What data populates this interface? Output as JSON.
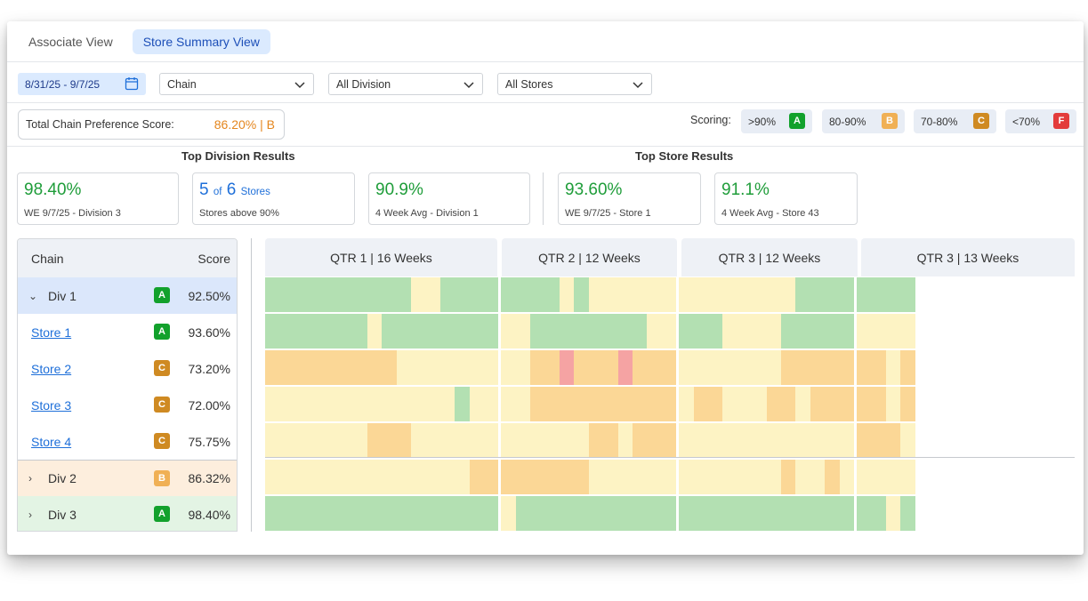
{
  "tabs": [
    {
      "label": "Associate View",
      "active": false
    },
    {
      "label": "Store Summary View",
      "active": true
    }
  ],
  "filters": {
    "date_range": "8/31/25 - 9/7/25",
    "chain": "Chain",
    "division": "All Division",
    "stores": "All Stores"
  },
  "total": {
    "label": "Total  Chain Preference Score:",
    "value": "86.20% | B"
  },
  "scoring": {
    "label": "Scoring:",
    "items": [
      {
        "range": ">90%",
        "grade": "A"
      },
      {
        "range": "80-90%",
        "grade": "B"
      },
      {
        "range": "70-80%",
        "grade": "C"
      },
      {
        "range": "<70%",
        "grade": "F"
      }
    ]
  },
  "colors": {
    "grade_A": "#12a12c",
    "grade_B": "#f0b055",
    "grade_C": "#cf8a22",
    "grade_F": "#e33b3b",
    "heat_green": "#b3e0b2",
    "heat_yellow": "#fdf3c4",
    "heat_orange": "#fbd796",
    "heat_red": "#f5a3a3"
  },
  "division_results": {
    "title": "Top Division Results",
    "cards": [
      {
        "big": "98.40%",
        "small": "WE 9/7/25 - Division 3"
      },
      {
        "count": "5",
        "of": "of",
        "total": "6",
        "unit": "Stores",
        "small": "Stores above 90%"
      },
      {
        "big": "90.9%",
        "small": "4 Week Avg - Division 1"
      }
    ]
  },
  "store_results": {
    "title": "Top Store Results",
    "cards": [
      {
        "big": "93.60%",
        "small": "WE 9/7/25 - Store 1"
      },
      {
        "big": "91.1%",
        "small": "4 Week Avg - Store 43"
      }
    ]
  },
  "table": {
    "col_chain": "Chain",
    "col_score": "Score",
    "rows": [
      {
        "name": "Div 1",
        "grade": "A",
        "score": "92.50%",
        "type": "division",
        "expanded": true
      },
      {
        "name": "Store 1",
        "grade": "A",
        "score": "93.60%",
        "type": "store"
      },
      {
        "name": "Store 2",
        "grade": "C",
        "score": "73.20%",
        "type": "store"
      },
      {
        "name": "Store 3",
        "grade": "C",
        "score": "72.00%",
        "type": "store"
      },
      {
        "name": "Store 4",
        "grade": "C",
        "score": "75.75%",
        "type": "store"
      },
      {
        "name": "Div 2",
        "grade": "B",
        "score": "86.32%",
        "type": "division",
        "expanded": false
      },
      {
        "name": "Div 3",
        "grade": "A",
        "score": "98.40%",
        "type": "division",
        "expanded": false
      }
    ]
  },
  "quarters": [
    {
      "label": "QTR 1 | 16 Weeks",
      "weeks": 16
    },
    {
      "label": "QTR 2 | 12 Weeks",
      "weeks": 12
    },
    {
      "label": "QTR 3 | 12 Weeks",
      "weeks": 12
    },
    {
      "label": "QTR 3 | 13 Weeks",
      "weeks": 13
    }
  ],
  "heatmap": [
    [
      [
        "g",
        10
      ],
      [
        "y",
        2
      ],
      [
        "g",
        4
      ],
      [
        "g",
        4
      ],
      [
        "y",
        1
      ],
      [
        "g",
        1
      ],
      [
        "y",
        6
      ],
      [
        "y",
        8
      ],
      [
        "g",
        4
      ],
      [
        "g",
        4
      ]
    ],
    [
      [
        "g",
        7
      ],
      [
        "y",
        1
      ],
      [
        "g",
        8
      ],
      [
        "y",
        2
      ],
      [
        "g",
        8
      ],
      [
        "y",
        2
      ],
      [
        "g",
        3
      ],
      [
        "y",
        4
      ],
      [
        "g",
        5
      ],
      [
        "y",
        4
      ]
    ],
    [
      [
        "o",
        9
      ],
      [
        "y",
        7
      ],
      [
        "y",
        2
      ],
      [
        "o",
        2
      ],
      [
        "r",
        1
      ],
      [
        "o",
        3
      ],
      [
        "r",
        1
      ],
      [
        "o",
        3
      ],
      [
        "y",
        7
      ],
      [
        "o",
        5
      ],
      [
        "o",
        2
      ],
      [
        "y",
        1
      ],
      [
        "o",
        1
      ]
    ],
    [
      [
        "y",
        13
      ],
      [
        "g",
        1
      ],
      [
        "y",
        2
      ],
      [
        "y",
        2
      ],
      [
        "o",
        10
      ],
      [
        "y",
        1
      ],
      [
        "o",
        2
      ],
      [
        "y",
        3
      ],
      [
        "o",
        2
      ],
      [
        "y",
        1
      ],
      [
        "o",
        3
      ],
      [
        "o",
        2
      ],
      [
        "y",
        1
      ],
      [
        "o",
        1
      ]
    ],
    [
      [
        "y",
        7
      ],
      [
        "o",
        3
      ],
      [
        "y",
        6
      ],
      [
        "y",
        6
      ],
      [
        "o",
        2
      ],
      [
        "y",
        1
      ],
      [
        "o",
        3
      ],
      [
        "y",
        12
      ],
      [
        "o",
        3
      ],
      [
        "y",
        1
      ]
    ],
    [
      [
        "y",
        14
      ],
      [
        "o",
        2
      ],
      [
        "o",
        6
      ],
      [
        "y",
        6
      ],
      [
        "y",
        7
      ],
      [
        "o",
        1
      ],
      [
        "y",
        2
      ],
      [
        "o",
        1
      ],
      [
        "y",
        1
      ],
      [
        "y",
        4
      ]
    ],
    [
      [
        "g",
        16
      ],
      [
        "y",
        1
      ],
      [
        "g",
        11
      ],
      [
        "g",
        12
      ],
      [
        "g",
        2
      ],
      [
        "y",
        1
      ],
      [
        "g",
        1
      ]
    ]
  ]
}
